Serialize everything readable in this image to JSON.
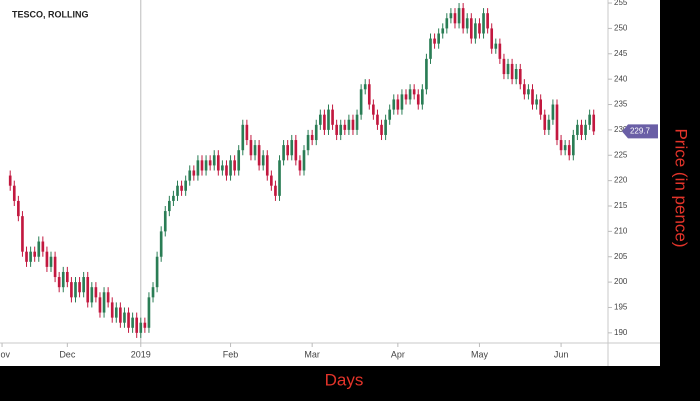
{
  "chart_data": {
    "type": "candlestick",
    "title": "TESCO, ROLLING",
    "x_label": "Days",
    "y_label": "Price (in pence)",
    "up_color": "#2a7d55",
    "down_color": "#c2183f",
    "xlim": [
      -2.5,
      146.5
    ],
    "xticks": [
      {
        "value": -2,
        "label": "Nov"
      },
      {
        "value": 14,
        "label": "Dec"
      },
      {
        "value": 32,
        "label": "2019"
      },
      {
        "value": 54,
        "label": "Feb"
      },
      {
        "value": 74,
        "label": "Mar"
      },
      {
        "value": 95,
        "label": "Apr"
      },
      {
        "value": 115,
        "label": "May"
      },
      {
        "value": 135,
        "label": "Jun"
      }
    ],
    "ylim": [
      188,
      255.6
    ],
    "yticks": [
      190,
      195,
      200,
      205,
      210,
      215,
      220,
      225,
      230,
      235,
      240,
      245,
      250,
      255
    ],
    "open": [
      221,
      219,
      216,
      213,
      206,
      204,
      206,
      205,
      208,
      206,
      203,
      205,
      201,
      199,
      202,
      200,
      197,
      200,
      198,
      201,
      196,
      199,
      197,
      194,
      198,
      196,
      193,
      195,
      192,
      194,
      191,
      193,
      190,
      192,
      191,
      197,
      199,
      205,
      210,
      214,
      216,
      217,
      219,
      218,
      220,
      222,
      221,
      224,
      222,
      224,
      223,
      225,
      222,
      223,
      221,
      224,
      222,
      226,
      231,
      228,
      225,
      227,
      223,
      225,
      221,
      219,
      217,
      224,
      227,
      225,
      228,
      224,
      222,
      226,
      229,
      228,
      231,
      233,
      230,
      234,
      231,
      229,
      231,
      230,
      232,
      230,
      233,
      238,
      239,
      235,
      233,
      231,
      229,
      232,
      234,
      236,
      234,
      237,
      236,
      238,
      237,
      235,
      238,
      244,
      248,
      247,
      249,
      250,
      252,
      253,
      251,
      254,
      250,
      252,
      248,
      251,
      249,
      253,
      250,
      246,
      247,
      244,
      241,
      243,
      240,
      242,
      239,
      237,
      238,
      235,
      236,
      233,
      230,
      232,
      235,
      228,
      226,
      227,
      225,
      229,
      231,
      229,
      231,
      233
    ],
    "high": [
      222,
      220,
      217,
      214,
      207,
      207,
      207,
      209,
      209,
      207,
      206,
      206,
      202,
      203,
      203,
      201,
      201,
      201,
      202,
      202,
      200,
      200,
      198,
      199,
      199,
      197,
      196,
      196,
      195,
      195,
      194,
      194,
      193,
      193,
      198,
      200,
      206,
      211,
      215,
      217,
      218,
      220,
      220,
      221,
      223,
      223,
      225,
      225,
      225,
      225,
      226,
      226,
      224,
      224,
      225,
      225,
      227,
      232,
      232,
      229,
      228,
      228,
      226,
      226,
      222,
      220,
      225,
      228,
      228,
      229,
      229,
      225,
      227,
      230,
      230,
      232,
      234,
      234,
      235,
      235,
      232,
      232,
      232,
      233,
      233,
      234,
      239,
      240,
      240,
      236,
      234,
      232,
      233,
      235,
      237,
      237,
      238,
      238,
      239,
      239,
      238,
      239,
      245,
      249,
      249,
      250,
      251,
      253,
      254,
      254,
      255,
      255,
      253,
      253,
      252,
      252,
      254,
      254,
      251,
      248,
      248,
      245,
      244,
      244,
      243,
      243,
      240,
      239,
      239,
      237,
      237,
      234,
      233,
      236,
      236,
      229,
      228,
      228,
      230,
      232,
      232,
      232,
      234,
      234
    ],
    "low": [
      218,
      215,
      212,
      205,
      203,
      203,
      204,
      204,
      205,
      202,
      202,
      200,
      198,
      198,
      199,
      196,
      196,
      197,
      197,
      195,
      195,
      196,
      193,
      193,
      195,
      192,
      192,
      191,
      191,
      190,
      190,
      189,
      189,
      190,
      190,
      196,
      198,
      204,
      209,
      213,
      215,
      216,
      217,
      217,
      219,
      220,
      220,
      221,
      221,
      222,
      222,
      221,
      221,
      220,
      220,
      221,
      221,
      225,
      227,
      224,
      224,
      222,
      222,
      220,
      218,
      216,
      216,
      223,
      224,
      224,
      223,
      221,
      221,
      225,
      227,
      227,
      230,
      229,
      229,
      230,
      228,
      228,
      229,
      229,
      229,
      229,
      232,
      237,
      234,
      232,
      230,
      228,
      228,
      231,
      233,
      233,
      233,
      235,
      235,
      236,
      234,
      234,
      237,
      243,
      246,
      246,
      248,
      249,
      251,
      250,
      250,
      249,
      249,
      247,
      247,
      248,
      248,
      249,
      245,
      245,
      243,
      240,
      240,
      239,
      239,
      238,
      236,
      236,
      234,
      234,
      232,
      229,
      229,
      231,
      227,
      225,
      225,
      224,
      224,
      228,
      228,
      228,
      230,
      229
    ],
    "close": [
      219,
      216,
      213,
      206,
      204,
      206,
      205,
      208,
      206,
      203,
      205,
      201,
      199,
      202,
      200,
      197,
      200,
      198,
      201,
      196,
      199,
      197,
      194,
      198,
      196,
      193,
      195,
      192,
      194,
      191,
      193,
      190,
      192,
      191,
      197,
      199,
      205,
      210,
      214,
      216,
      217,
      219,
      218,
      220,
      222,
      221,
      224,
      222,
      224,
      223,
      225,
      222,
      223,
      221,
      224,
      222,
      226,
      231,
      228,
      225,
      227,
      223,
      225,
      221,
      219,
      217,
      224,
      227,
      225,
      228,
      224,
      222,
      226,
      229,
      228,
      231,
      233,
      230,
      234,
      231,
      229,
      231,
      230,
      232,
      230,
      233,
      238,
      239,
      235,
      233,
      231,
      229,
      232,
      234,
      236,
      234,
      237,
      236,
      238,
      237,
      235,
      238,
      244,
      248,
      247,
      249,
      250,
      252,
      253,
      251,
      254,
      250,
      252,
      248,
      251,
      249,
      253,
      250,
      246,
      247,
      244,
      241,
      243,
      240,
      242,
      239,
      237,
      238,
      235,
      236,
      233,
      230,
      232,
      235,
      228,
      226,
      227,
      225,
      229,
      231,
      229,
      231,
      233,
      229.7
    ],
    "last_color": "#6a5fa6"
  }
}
